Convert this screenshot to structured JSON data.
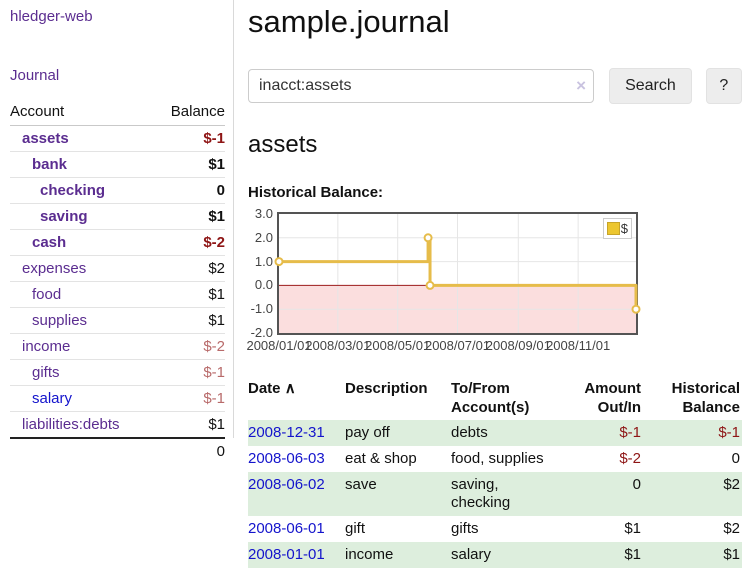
{
  "colors": {
    "link_purple": "#5b2d90",
    "link_blue": "#1414cc",
    "negative_strong": "#8e1515",
    "negative_soft": "#b86a6a",
    "row_green": "#ddeedd",
    "chart_line": "#e6bc4a"
  },
  "sidebar": {
    "app_title": "hledger-web",
    "journal_link": "Journal",
    "col_account": "Account",
    "col_balance": "Balance",
    "accounts": [
      {
        "name": "assets",
        "balance": "$-1"
      },
      {
        "name": "bank",
        "balance": "$1"
      },
      {
        "name": "checking",
        "balance": "0"
      },
      {
        "name": "saving",
        "balance": "$1"
      },
      {
        "name": "cash",
        "balance": "$-2"
      },
      {
        "name": "expenses",
        "balance": "$2"
      },
      {
        "name": "food",
        "balance": "$1"
      },
      {
        "name": "supplies",
        "balance": "$1"
      },
      {
        "name": "income",
        "balance": "$-2"
      },
      {
        "name": "gifts",
        "balance": "$-1"
      },
      {
        "name": "salary",
        "balance": "$-1"
      },
      {
        "name": "liabilities:debts",
        "balance": "$1"
      }
    ],
    "total": "0"
  },
  "main": {
    "title": "sample.journal",
    "search": {
      "value": "inacct:assets",
      "clear_icon": "×",
      "button_label": "Search",
      "help_label": "?"
    },
    "section_title": "assets",
    "chart_label": "Historical Balance:"
  },
  "chart_data": {
    "type": "line",
    "step": true,
    "title": "Historical Balance",
    "ylim": [
      -2,
      3
    ],
    "xmax_day": 364,
    "grid": true,
    "grid_color": "#e6e6e6",
    "negative_fill": "#fbdede",
    "zero_line_color": "#9c1c1c",
    "legend_position": "top-right",
    "series": [
      {
        "name": "$",
        "color": "#e6bc4a",
        "points": [
          {
            "date": "2008-01-01",
            "day": 0,
            "value": 1
          },
          {
            "date": "2008-06-01",
            "day": 152,
            "value": 2
          },
          {
            "date": "2008-06-03",
            "day": 154,
            "value": 0
          },
          {
            "date": "2008-12-31",
            "day": 364,
            "value": -1
          }
        ]
      }
    ],
    "y_ticks": [
      {
        "label": "3.0",
        "value": 3
      },
      {
        "label": "2.0",
        "value": 2
      },
      {
        "label": "1.0",
        "value": 1
      },
      {
        "label": "0.0",
        "value": 0
      },
      {
        "label": "-1.0",
        "value": -1
      },
      {
        "label": "-2.0",
        "value": -2
      }
    ],
    "x_ticks": [
      {
        "label": "2008/01/01",
        "day": 0
      },
      {
        "label": "2008/03/01",
        "day": 60
      },
      {
        "label": "2008/05/01",
        "day": 121
      },
      {
        "label": "2008/07/01",
        "day": 182
      },
      {
        "label": "2008/09/01",
        "day": 244
      },
      {
        "label": "2008/11/01",
        "day": 305
      }
    ],
    "legend": {
      "swatch": "$",
      "label": "$"
    }
  },
  "register": {
    "header": {
      "date": "Date",
      "sort_icon": "∧",
      "description": "Description",
      "tofrom_line1": "To/From",
      "tofrom_line2": "Account(s)",
      "amount_line1": "Amount",
      "amount_line2": "Out/In",
      "hist_line1": "Historical",
      "hist_line2": "Balance"
    },
    "rows": [
      {
        "date": "2008-12-31",
        "description": "pay off",
        "accounts": "debts",
        "amount": "$-1",
        "balance": "$-1"
      },
      {
        "date": "2008-06-03",
        "description": "eat & shop",
        "accounts": "food, supplies",
        "amount": "$-2",
        "balance": "0"
      },
      {
        "date": "2008-06-02",
        "description": "save",
        "accounts": "saving, checking",
        "amount": "0",
        "balance": "$2"
      },
      {
        "date": "2008-06-01",
        "description": "gift",
        "accounts": "gifts",
        "amount": "$1",
        "balance": "$2"
      },
      {
        "date": "2008-01-01",
        "description": "income",
        "accounts": "salary",
        "amount": "$1",
        "balance": "$1"
      }
    ]
  }
}
